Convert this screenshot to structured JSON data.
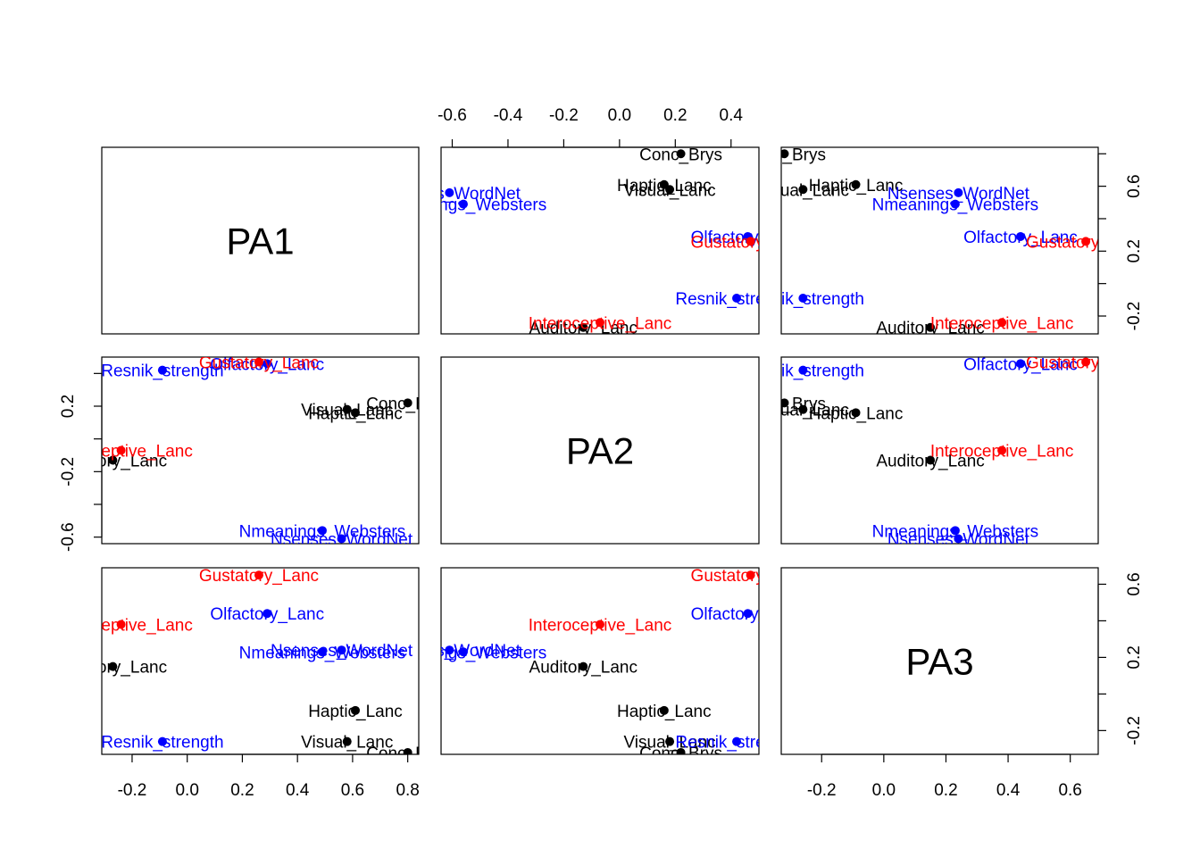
{
  "colors": {
    "frame": "#000000",
    "black": "#000000",
    "blue": "#0000ff",
    "red": "#ff0000"
  },
  "chart_data": {
    "type": "scatter",
    "variables": [
      "PA1",
      "PA2",
      "PA3"
    ],
    "items": [
      {
        "name": "Conc_Brys",
        "color": "black",
        "PA1": 0.8,
        "PA2": 0.22,
        "PA3": -0.32
      },
      {
        "name": "Haptic_Lanc",
        "color": "black",
        "PA1": 0.61,
        "PA2": 0.16,
        "PA3": -0.09
      },
      {
        "name": "Visual_Lanc",
        "color": "black",
        "PA1": 0.58,
        "PA2": 0.18,
        "PA3": -0.26
      },
      {
        "name": "Auditory_Lanc",
        "color": "black",
        "PA1": -0.27,
        "PA2": -0.13,
        "PA3": 0.15
      },
      {
        "name": "Nsenses_WordNet",
        "color": "blue",
        "PA1": 0.56,
        "PA2": -0.61,
        "PA3": 0.24
      },
      {
        "name": "Nmeanings_Websters",
        "color": "blue",
        "PA1": 0.49,
        "PA2": -0.56,
        "PA3": 0.23
      },
      {
        "name": "Olfactory_Lanc",
        "color": "blue",
        "PA1": 0.29,
        "PA2": 0.46,
        "PA3": 0.44
      },
      {
        "name": "Resnik_strength",
        "color": "blue",
        "PA1": -0.09,
        "PA2": 0.42,
        "PA3": -0.26
      },
      {
        "name": "Gustatory_Lanc",
        "color": "red",
        "PA1": 0.26,
        "PA2": 0.47,
        "PA3": 0.65
      },
      {
        "name": "Interoceptive_Lanc",
        "color": "red",
        "PA1": -0.24,
        "PA2": -0.07,
        "PA3": 0.38
      }
    ],
    "ranges": {
      "PA1": [
        -0.31,
        0.84
      ],
      "PA2": [
        -0.64,
        0.5
      ],
      "PA3": [
        -0.33,
        0.69
      ]
    },
    "ticks": {
      "PA1": [
        -0.2,
        0.0,
        0.2,
        0.4,
        0.6,
        0.8
      ],
      "PA2": [
        -0.6,
        -0.4,
        -0.2,
        0.0,
        0.2,
        0.4
      ],
      "PA3": [
        -0.2,
        0.0,
        0.2,
        0.4,
        0.6
      ]
    },
    "tick_labels": {
      "PA1": [
        "-0.2",
        "0.0",
        "0.2",
        "0.4",
        "0.6",
        "0.8"
      ],
      "PA2": [
        "-0.6",
        "-0.4",
        "-0.2",
        "0.0",
        "0.2",
        "0.4"
      ],
      "PA3": [
        "-0.2",
        "0.0",
        "0.2",
        "0.4",
        "0.6"
      ]
    },
    "grid": false,
    "legend": "none"
  }
}
